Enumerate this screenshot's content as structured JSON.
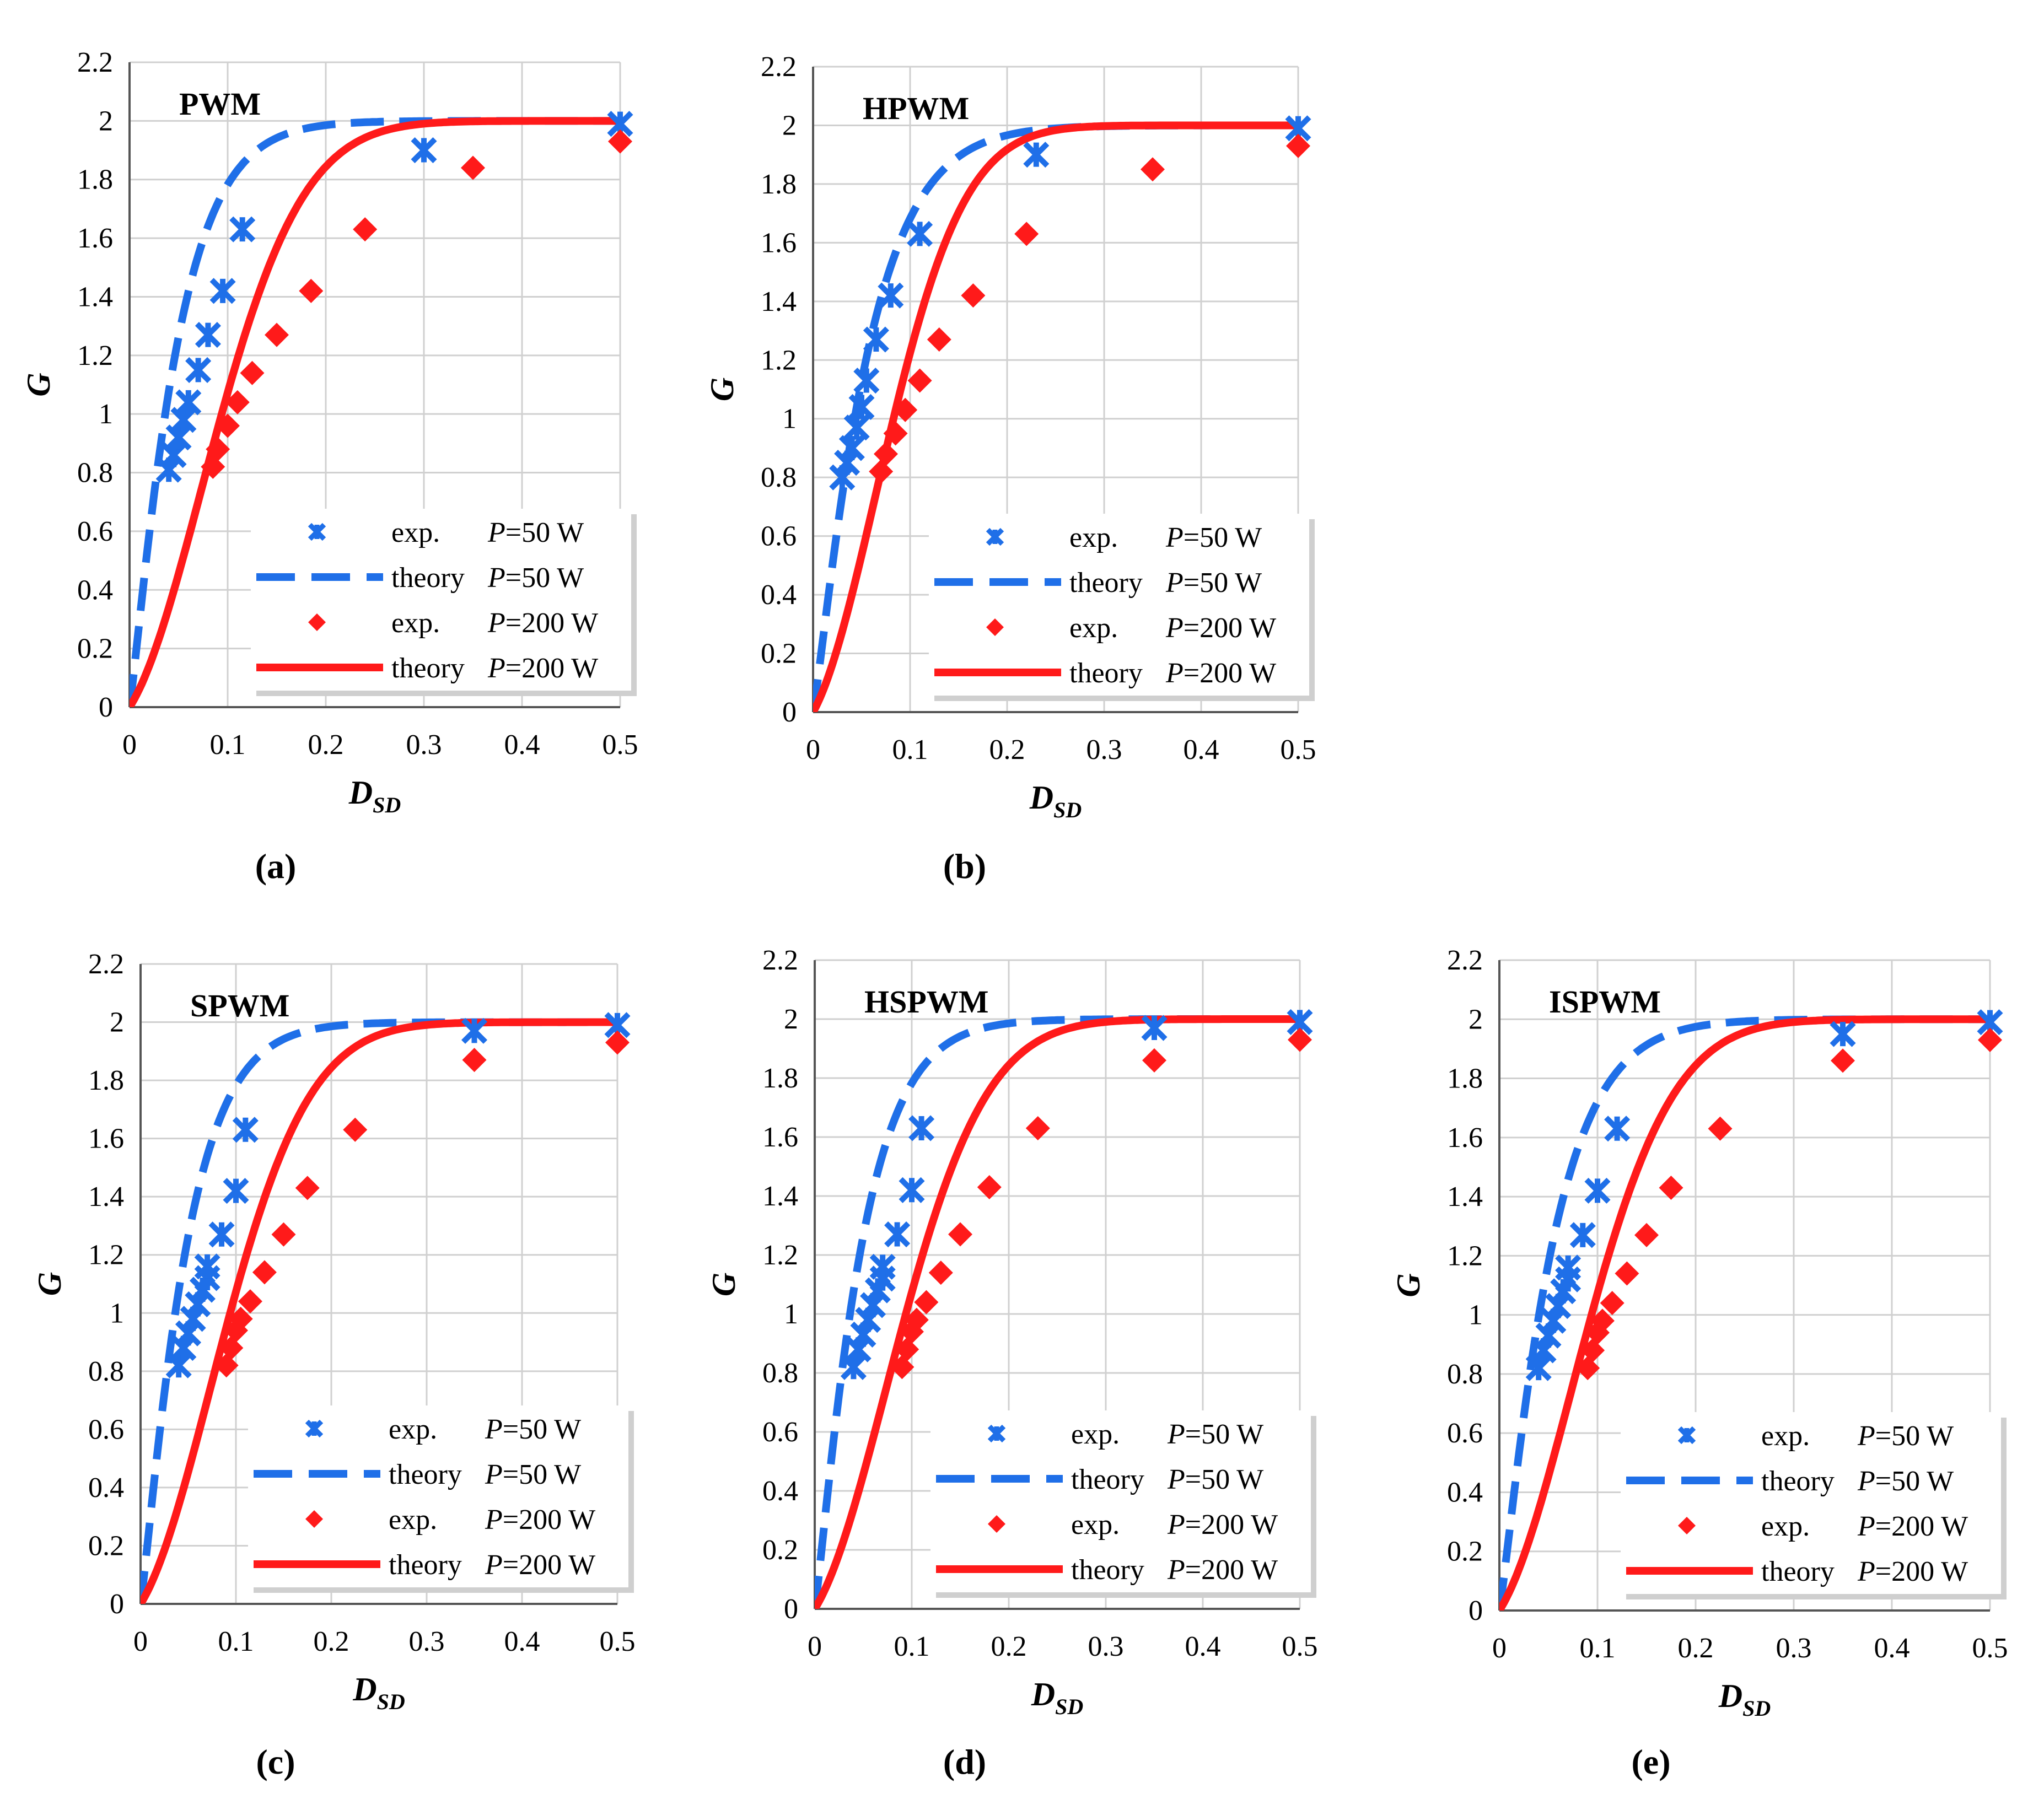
{
  "colors": {
    "blue": "#1f6fe8",
    "red": "#ff1a1a",
    "grid": "#d0d0d0",
    "axis": "#555555"
  },
  "legend_entries": [
    {
      "kind": "blue-x",
      "label": "exp.",
      "param": "P",
      "value": "=50 W"
    },
    {
      "kind": "blue-dash",
      "label": "theory",
      "param": "P",
      "value": "=50 W"
    },
    {
      "kind": "red-diamond",
      "label": "exp.",
      "param": "P",
      "value": "=200 W"
    },
    {
      "kind": "red-line",
      "label": "theory",
      "param": "P",
      "value": "=200 W"
    }
  ],
  "chart_data": [
    {
      "type": "line",
      "panel_label": "(a)",
      "title": "PWM",
      "xlabel": "D_SD",
      "xlabel_main": "D",
      "xlabel_sub": "SD",
      "ylabel": "G",
      "xlim": [
        0,
        0.5
      ],
      "ylim": [
        0,
        2.2
      ],
      "xticks": [
        "0",
        "0.1",
        "0.2",
        "0.3",
        "0.4",
        "0.5"
      ],
      "yticks": [
        "0",
        "0.2",
        "0.4",
        "0.6",
        "0.8",
        "1",
        "1.2",
        "1.4",
        "1.6",
        "1.8",
        "2",
        "2.2"
      ],
      "series": [
        {
          "name": "exp. P=50 W",
          "kind": "blue-x",
          "x": [
            0.04,
            0.045,
            0.05,
            0.055,
            0.06,
            0.07,
            0.08,
            0.095,
            0.115,
            0.3,
            0.5
          ],
          "y": [
            0.81,
            0.86,
            0.92,
            0.98,
            1.04,
            1.15,
            1.27,
            1.42,
            1.63,
            1.9,
            1.99
          ]
        },
        {
          "name": "theory P=50 W",
          "kind": "blue-dash",
          "k": 20
        },
        {
          "name": "exp. P=200 W",
          "kind": "red-diamond",
          "x": [
            0.085,
            0.09,
            0.1,
            0.11,
            0.125,
            0.15,
            0.185,
            0.24,
            0.35,
            0.5
          ],
          "y": [
            0.82,
            0.88,
            0.96,
            1.04,
            1.14,
            1.27,
            1.42,
            1.63,
            1.84,
            1.93
          ]
        },
        {
          "name": "theory P=200 W",
          "kind": "red-line",
          "k": 7.5
        }
      ]
    },
    {
      "type": "line",
      "panel_label": "(b)",
      "title": "HPWM",
      "xlabel": "D_SD",
      "xlabel_main": "D",
      "xlabel_sub": "SD",
      "ylabel": "G",
      "xlim": [
        0,
        0.5
      ],
      "ylim": [
        0,
        2.2
      ],
      "xticks": [
        "0",
        "0.1",
        "0.2",
        "0.3",
        "0.4",
        "0.5"
      ],
      "yticks": [
        "0",
        "0.2",
        "0.4",
        "0.6",
        "0.8",
        "1",
        "1.2",
        "1.4",
        "1.6",
        "1.8",
        "2",
        "2.2"
      ],
      "series": [
        {
          "name": "exp. P=50 W",
          "kind": "blue-x",
          "x": [
            0.03,
            0.035,
            0.04,
            0.045,
            0.05,
            0.055,
            0.065,
            0.08,
            0.11,
            0.23,
            0.5
          ],
          "y": [
            0.8,
            0.85,
            0.9,
            0.97,
            1.04,
            1.13,
            1.27,
            1.42,
            1.63,
            1.9,
            1.99
          ]
        },
        {
          "name": "theory P=50 W",
          "kind": "blue-dash",
          "k": 17
        },
        {
          "name": "exp. P=200 W",
          "kind": "red-diamond",
          "x": [
            0.07,
            0.075,
            0.085,
            0.095,
            0.11,
            0.13,
            0.165,
            0.22,
            0.35,
            0.5
          ],
          "y": [
            0.82,
            0.88,
            0.95,
            1.03,
            1.13,
            1.27,
            1.42,
            1.63,
            1.85,
            1.93
          ]
        },
        {
          "name": "theory P=200 W",
          "kind": "red-line",
          "k": 8.5
        }
      ]
    },
    {
      "type": "line",
      "panel_label": "(c)",
      "title": "SPWM",
      "xlabel": "D_SD",
      "xlabel_main": "D",
      "xlabel_sub": "SD",
      "ylabel": "G",
      "xlim": [
        0,
        0.5
      ],
      "ylim": [
        0,
        2.2
      ],
      "xticks": [
        "0",
        "0.1",
        "0.2",
        "0.3",
        "0.4",
        "0.5"
      ],
      "yticks": [
        "0",
        "0.2",
        "0.4",
        "0.6",
        "0.8",
        "1",
        "1.2",
        "1.4",
        "1.6",
        "1.8",
        "2",
        "2.2"
      ],
      "series": [
        {
          "name": "exp. P=50 W",
          "kind": "blue-x",
          "x": [
            0.04,
            0.045,
            0.05,
            0.055,
            0.06,
            0.065,
            0.07,
            0.07,
            0.085,
            0.1,
            0.11,
            0.35,
            0.5
          ],
          "y": [
            0.82,
            0.88,
            0.93,
            0.98,
            1.03,
            1.08,
            1.12,
            1.16,
            1.27,
            1.42,
            1.63,
            1.97,
            1.99
          ]
        },
        {
          "name": "theory P=50 W",
          "kind": "blue-dash",
          "k": 20
        },
        {
          "name": "exp. P=200 W",
          "kind": "red-diamond",
          "x": [
            0.09,
            0.095,
            0.1,
            0.105,
            0.115,
            0.13,
            0.15,
            0.175,
            0.225,
            0.35,
            0.5
          ],
          "y": [
            0.82,
            0.88,
            0.94,
            0.98,
            1.04,
            1.14,
            1.27,
            1.43,
            1.63,
            1.87,
            1.93
          ]
        },
        {
          "name": "theory P=200 W",
          "kind": "red-line",
          "k": 7.5
        }
      ]
    },
    {
      "type": "line",
      "panel_label": "(d)",
      "title": "HSPWM",
      "xlabel": "D_SD",
      "xlabel_main": "D",
      "xlabel_sub": "SD",
      "ylabel": "G",
      "xlim": [
        0,
        0.5
      ],
      "ylim": [
        0,
        2.2
      ],
      "xticks": [
        "0",
        "0.1",
        "0.2",
        "0.3",
        "0.4",
        "0.5"
      ],
      "yticks": [
        "0",
        "0.2",
        "0.4",
        "0.6",
        "0.8",
        "1",
        "1.2",
        "1.4",
        "1.6",
        "1.8",
        "2",
        "2.2"
      ],
      "series": [
        {
          "name": "exp. P=50 W",
          "kind": "blue-x",
          "x": [
            0.04,
            0.045,
            0.05,
            0.055,
            0.06,
            0.065,
            0.07,
            0.07,
            0.085,
            0.1,
            0.11,
            0.35,
            0.5
          ],
          "y": [
            0.82,
            0.88,
            0.93,
            0.98,
            1.03,
            1.08,
            1.12,
            1.16,
            1.27,
            1.42,
            1.63,
            1.97,
            1.99
          ]
        },
        {
          "name": "theory P=50 W",
          "kind": "blue-dash",
          "k": 20
        },
        {
          "name": "exp. P=200 W",
          "kind": "red-diamond",
          "x": [
            0.09,
            0.095,
            0.1,
            0.105,
            0.115,
            0.13,
            0.15,
            0.18,
            0.23,
            0.35,
            0.5
          ],
          "y": [
            0.82,
            0.88,
            0.94,
            0.98,
            1.04,
            1.14,
            1.27,
            1.43,
            1.63,
            1.86,
            1.93
          ]
        },
        {
          "name": "theory P=200 W",
          "kind": "red-line",
          "k": 7.5
        }
      ]
    },
    {
      "type": "line",
      "panel_label": "(e)",
      "title": "ISPWM",
      "xlabel": "D_SD",
      "xlabel_main": "D",
      "xlabel_sub": "SD",
      "ylabel": "G",
      "xlim": [
        0,
        0.5
      ],
      "ylim": [
        0,
        2.2
      ],
      "xticks": [
        "0",
        "0.1",
        "0.2",
        "0.3",
        "0.4",
        "0.5"
      ],
      "yticks": [
        "0",
        "0.2",
        "0.4",
        "0.6",
        "0.8",
        "1",
        "1.2",
        "1.4",
        "1.6",
        "1.8",
        "2",
        "2.2"
      ],
      "series": [
        {
          "name": "exp. P=50 W",
          "kind": "blue-x",
          "x": [
            0.04,
            0.045,
            0.05,
            0.055,
            0.06,
            0.065,
            0.07,
            0.07,
            0.085,
            0.1,
            0.12,
            0.35,
            0.5
          ],
          "y": [
            0.82,
            0.88,
            0.93,
            0.98,
            1.03,
            1.08,
            1.12,
            1.16,
            1.27,
            1.42,
            1.63,
            1.95,
            1.99
          ]
        },
        {
          "name": "theory P=50 W",
          "kind": "blue-dash",
          "k": 18
        },
        {
          "name": "exp. P=200 W",
          "kind": "red-diamond",
          "x": [
            0.09,
            0.095,
            0.1,
            0.105,
            0.115,
            0.13,
            0.15,
            0.175,
            0.225,
            0.35,
            0.5
          ],
          "y": [
            0.82,
            0.88,
            0.94,
            0.98,
            1.04,
            1.14,
            1.27,
            1.43,
            1.63,
            1.86,
            1.93
          ]
        },
        {
          "name": "theory P=200 W",
          "kind": "red-line",
          "k": 7.5
        }
      ]
    }
  ]
}
